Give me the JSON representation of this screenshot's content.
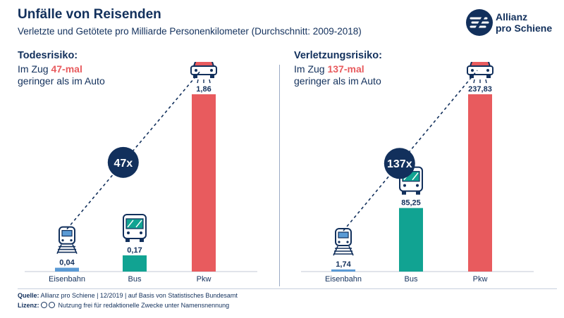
{
  "header": {
    "title": "Unfälle von Reisenden",
    "subtitle": "Verletzte und Getötete pro Milliarde Personenkilometer (Durchschnitt: 2009-2018)"
  },
  "logo": {
    "text": "Allianz\npro Schiene",
    "icon": "allianz-pro-schiene-logo-icon"
  },
  "colors": {
    "navy": "#12305c",
    "rail": "#5b9bd5",
    "bus": "#11a392",
    "car": "#e85b5e"
  },
  "panels": [
    {
      "heading": "Todesrisiko:",
      "line1_prefix": "Im Zug ",
      "line1_highlight": "47-mal",
      "line2": "geringer als im Auto",
      "ratio_badge": "47x"
    },
    {
      "heading": "Verletzungsrisiko:",
      "line1_prefix": "Im Zug ",
      "line1_highlight": "137-mal",
      "line2": "geringer als im Auto",
      "ratio_badge": "137x"
    }
  ],
  "footer": {
    "source_label": "Quelle:",
    "source_text": "Allianz pro Schiene | 12/2019 | auf Basis von Statistisches Bundesamt",
    "license_label": "Lizenz:",
    "license_text": "Nutzung frei für redaktionelle Zwecke unter Namensnennung"
  },
  "chart_data": [
    {
      "type": "bar",
      "categories": [
        "Eisenbahn",
        "Bus",
        "Pkw"
      ],
      "values": [
        0.04,
        0.17,
        1.86
      ],
      "value_labels": [
        "0,04",
        "0,17",
        "1,86"
      ],
      "ylim": [
        0,
        1.86
      ],
      "icons": [
        "train-icon",
        "bus-icon",
        "car-icon"
      ],
      "annotation": "47x"
    },
    {
      "type": "bar",
      "categories": [
        "Eisenbahn",
        "Bus",
        "Pkw"
      ],
      "values": [
        1.74,
        85.25,
        237.83
      ],
      "value_labels": [
        "1,74",
        "85,25",
        "237,83"
      ],
      "ylim": [
        0,
        237.83
      ],
      "icons": [
        "train-icon",
        "bus-icon",
        "car-icon"
      ],
      "annotation": "137x"
    }
  ]
}
